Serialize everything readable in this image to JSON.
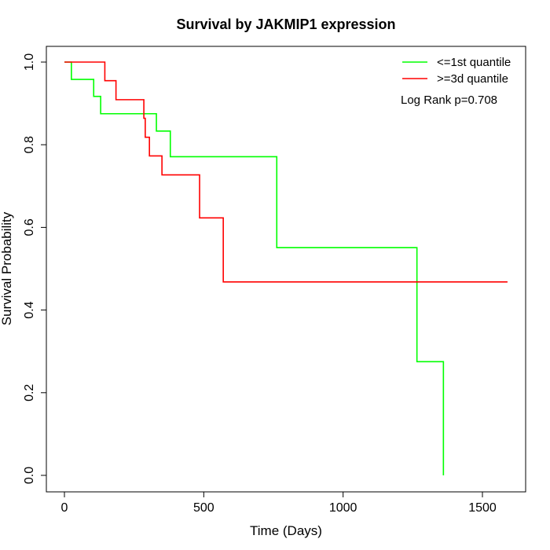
{
  "chart_data": {
    "type": "line",
    "subtype": "kaplan-meier step",
    "title": "Survival by JAKMIP1 expression",
    "xlabel": "Time (Days)",
    "ylabel": "Survival Probability",
    "xlim": [
      0,
      1600
    ],
    "ylim": [
      0,
      1
    ],
    "x_ticks": [
      0,
      500,
      1000,
      1500
    ],
    "y_ticks": [
      0.0,
      0.2,
      0.4,
      0.6,
      0.8,
      1.0
    ],
    "x_tick_labels": [
      "0",
      "500",
      "1000",
      "1500"
    ],
    "y_tick_labels": [
      "0.0",
      "0.2",
      "0.4",
      "0.6",
      "0.8",
      "1.0"
    ],
    "grid": false,
    "legend_position": "top-right",
    "annotation": "Log Rank p=0.708",
    "series": [
      {
        "name": "<=1st quantile",
        "color": "#00ff00",
        "x": [
          0,
          25,
          105,
          130,
          330,
          380,
          762,
          1265,
          1360
        ],
        "y": [
          1.0,
          0.958,
          0.917,
          0.875,
          0.833,
          0.771,
          0.551,
          0.275,
          0.0
        ]
      },
      {
        "name": ">=3d quantile",
        "color": "#ff0000",
        "x": [
          0,
          145,
          185,
          285,
          290,
          305,
          350,
          485,
          570,
          1590
        ],
        "y": [
          1.0,
          0.955,
          0.909,
          0.864,
          0.818,
          0.773,
          0.727,
          0.623,
          0.468,
          0.468
        ]
      }
    ]
  }
}
